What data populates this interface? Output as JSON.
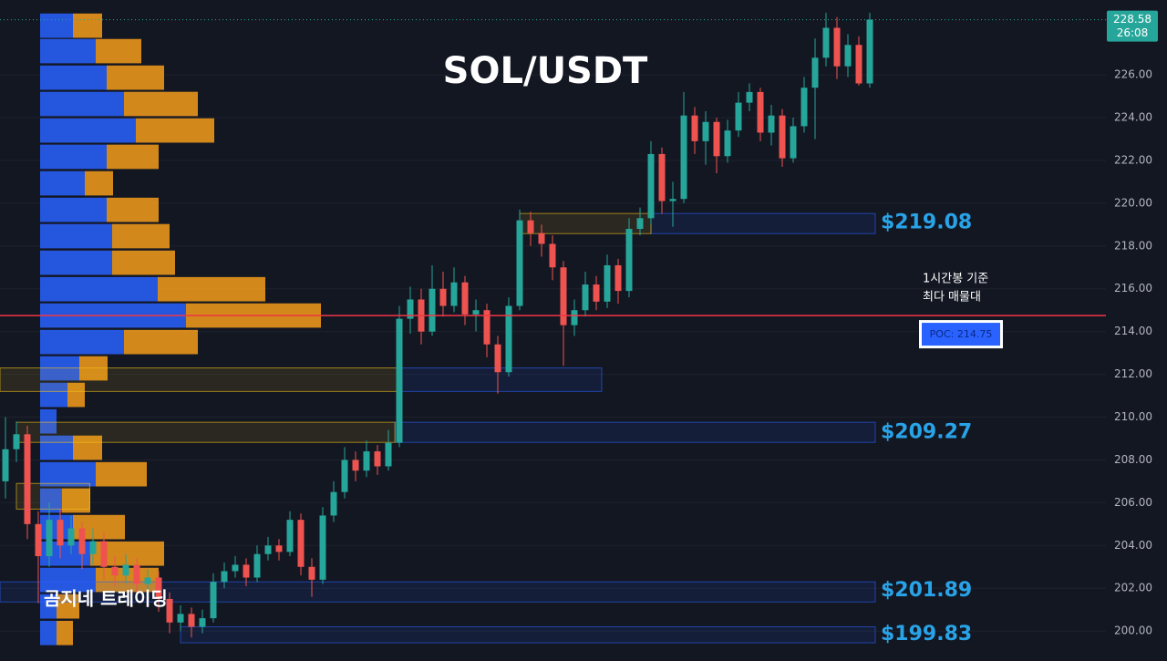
{
  "chart_data": {
    "type": "candlestick",
    "title": "SOL/USDT",
    "watermark": "곰지네 트레이딩",
    "up_color": "#26a69a",
    "down_color": "#ef5350",
    "open": [
      207,
      208.5,
      209.2,
      205,
      203.5,
      205.2,
      204,
      204.8,
      203.6,
      204.2,
      203,
      202.6,
      203.1,
      202.2,
      202.5,
      201.5,
      200.4,
      200.8,
      200.2,
      200.6,
      202.3,
      202.8,
      203.1,
      202.5,
      203.6,
      204,
      203.7,
      205.2,
      203,
      202.4,
      205.4,
      206.5,
      208,
      207.5,
      208.4,
      207.7,
      208.8,
      214.6,
      215.5,
      214,
      216,
      215.2,
      216.3,
      214.8,
      215,
      213.4,
      212.1,
      215.2,
      219.2,
      218.6,
      218.1,
      217,
      214.3,
      215,
      216.2,
      215.4,
      217.1,
      215.9,
      218.8,
      219.3,
      222.3,
      220.1,
      220.2,
      224.1,
      222.9,
      223.8,
      222.2,
      223.4,
      224.7,
      225.2,
      223.3,
      224.1,
      222.1,
      223.6,
      225.4,
      226.8,
      228.2,
      226.4,
      227.4,
      225.6
    ],
    "high": [
      210,
      209.8,
      209.6,
      205.6,
      206,
      205.7,
      205.4,
      205.1,
      204.8,
      204.6,
      203.5,
      203.6,
      203.4,
      202.9,
      202.8,
      201.8,
      201.2,
      201.1,
      201,
      202.7,
      203.2,
      203.5,
      203.4,
      204,
      204.4,
      204.3,
      205.6,
      205.5,
      203.4,
      205.8,
      207,
      208.6,
      208.4,
      208.9,
      208.7,
      209.4,
      215.2,
      216.1,
      216,
      217.1,
      216.8,
      217,
      216.6,
      215.5,
      215.3,
      213.8,
      215.6,
      219.7,
      219.6,
      219,
      218.5,
      217.3,
      215.5,
      216.8,
      216.6,
      217.6,
      217.4,
      219.3,
      219.8,
      222.9,
      222.6,
      221,
      225.2,
      224.5,
      224.3,
      224,
      223.9,
      225.2,
      225.6,
      225.4,
      224.6,
      224.4,
      224,
      225.9,
      227.7,
      228.9,
      228.7,
      227.9,
      227.8,
      228.9
    ],
    "low": [
      206.2,
      207.9,
      204.3,
      201.3,
      203,
      203.4,
      203.6,
      202.9,
      203.1,
      202.4,
      202.1,
      202.2,
      201.8,
      201.7,
      200.9,
      199.9,
      200,
      199.7,
      199.9,
      200.4,
      202,
      202.5,
      202.1,
      202.3,
      203.3,
      203.3,
      203.5,
      202.6,
      201.6,
      202.2,
      205.1,
      206.2,
      207,
      207.2,
      207.3,
      207.5,
      208.6,
      213.9,
      213.4,
      213.8,
      214.7,
      214.9,
      214.3,
      214,
      212.8,
      211.1,
      211.9,
      215,
      218,
      217.5,
      216.4,
      212.4,
      213.8,
      214.7,
      215,
      215.1,
      215.3,
      215.6,
      218.5,
      219,
      219.5,
      218.9,
      220,
      222.3,
      221.8,
      221.4,
      221.9,
      223.1,
      224.3,
      222.9,
      222.7,
      221.7,
      221.9,
      223.3,
      223,
      226.4,
      225.8,
      225.9,
      225.5,
      225.4
    ],
    "close": [
      208.5,
      209.2,
      205,
      203.5,
      205.2,
      204,
      204.8,
      203.6,
      204.2,
      203,
      202.6,
      203.1,
      202.2,
      202.5,
      201.5,
      200.4,
      200.8,
      200.2,
      200.6,
      202.3,
      202.8,
      203.1,
      202.5,
      203.6,
      204,
      203.7,
      205.2,
      203,
      202.4,
      205.4,
      206.5,
      208,
      207.5,
      208.4,
      207.7,
      208.8,
      214.6,
      215.5,
      214,
      216,
      215.2,
      216.3,
      214.8,
      215,
      213.4,
      212.1,
      215.2,
      219.2,
      218.6,
      218.1,
      217,
      214.3,
      215,
      216.2,
      215.4,
      217.1,
      215.9,
      218.8,
      219.3,
      222.3,
      220.1,
      220.2,
      224.1,
      222.9,
      223.8,
      222.2,
      223.4,
      224.7,
      225.2,
      223.3,
      224.1,
      222.1,
      223.6,
      225.4,
      226.8,
      228.2,
      226.4,
      227.4,
      225.6,
      228.58
    ],
    "ylim": [
      198.6,
      229.5
    ],
    "yticks": [
      {
        "value": 200,
        "label": "200.00"
      },
      {
        "value": 202,
        "label": "202.00"
      },
      {
        "value": 204,
        "label": "204.00"
      },
      {
        "value": 206,
        "label": "206.00"
      },
      {
        "value": 208,
        "label": "208.00"
      },
      {
        "value": 210,
        "label": "210.00"
      },
      {
        "value": 212,
        "label": "212.00"
      },
      {
        "value": 214,
        "label": "214.00"
      },
      {
        "value": 216,
        "label": "216.00"
      },
      {
        "value": 218,
        "label": "218.00"
      },
      {
        "value": 220,
        "label": "220.00"
      },
      {
        "value": 222,
        "label": "222.00"
      },
      {
        "value": 224,
        "label": "224.00"
      },
      {
        "value": 226,
        "label": "226.00"
      }
    ],
    "grid": true,
    "last_price": 228.58,
    "countdown": "26:08",
    "volume_profile": {
      "buy_color": "#2962ff",
      "sell_color": "#f59c1a",
      "step": 1.236,
      "levels": [
        228.3,
        227.11,
        225.87,
        224.64,
        223.4,
        222.17,
        220.93,
        219.69,
        218.46,
        217.22,
        215.98,
        214.75,
        213.51,
        212.28,
        211.04,
        209.8,
        208.57,
        207.33,
        206.1,
        204.86,
        203.62,
        202.39,
        201.15,
        199.91
      ],
      "buy": [
        36,
        61,
        73,
        92,
        105,
        73,
        49,
        73,
        79,
        79,
        129,
        160,
        92,
        43,
        30,
        18,
        36,
        61,
        24,
        36,
        55,
        61,
        18,
        18
      ],
      "sell": [
        32,
        50,
        63,
        81,
        86,
        57,
        31,
        57,
        63,
        69,
        118,
        148,
        81,
        31,
        19,
        0,
        32,
        56,
        31,
        57,
        81,
        69,
        25,
        18
      ]
    },
    "zones": [
      {
        "low": 218.58,
        "high": 219.52,
        "from": 59,
        "to": 79.5,
        "color": "#2962ff"
      },
      {
        "low": 211.2,
        "high": 212.3,
        "from": 36,
        "to": 54.5,
        "color": "#2962ff"
      },
      {
        "low": 208.82,
        "high": 209.76,
        "from": 35.6,
        "to": 79.5,
        "color": "#2962ff"
      },
      {
        "low": 201.36,
        "high": 202.3,
        "from": -0.5,
        "to": 79.5,
        "color": "#2962ff"
      },
      {
        "low": 199.45,
        "high": 200.2,
        "from": 16,
        "to": 79.5,
        "color": "#2962ff"
      },
      {
        "low": 218.58,
        "high": 219.52,
        "from": 47,
        "to": 59,
        "color": "#f5c518"
      },
      {
        "low": 211.2,
        "high": 212.3,
        "from": -0.5,
        "to": 36,
        "color": "#f5c518"
      },
      {
        "low": 208.82,
        "high": 209.76,
        "from": 1,
        "to": 35.6,
        "color": "#f5c518"
      },
      {
        "low": 205.7,
        "high": 206.9,
        "from": 1,
        "to": 7.7,
        "color": "#f5c518"
      }
    ],
    "levels": [
      {
        "value": 219.08,
        "label": "$219.08"
      },
      {
        "value": 209.27,
        "label": "$209.27"
      },
      {
        "value": 201.89,
        "label": "$201.89"
      },
      {
        "value": 199.83,
        "label": "$199.83"
      }
    ],
    "poc": {
      "value": 214.75,
      "label": "POC: 214.75",
      "color": "#f23645"
    },
    "annotation": [
      "1시간봉 기준",
      "최다 매물대"
    ]
  }
}
